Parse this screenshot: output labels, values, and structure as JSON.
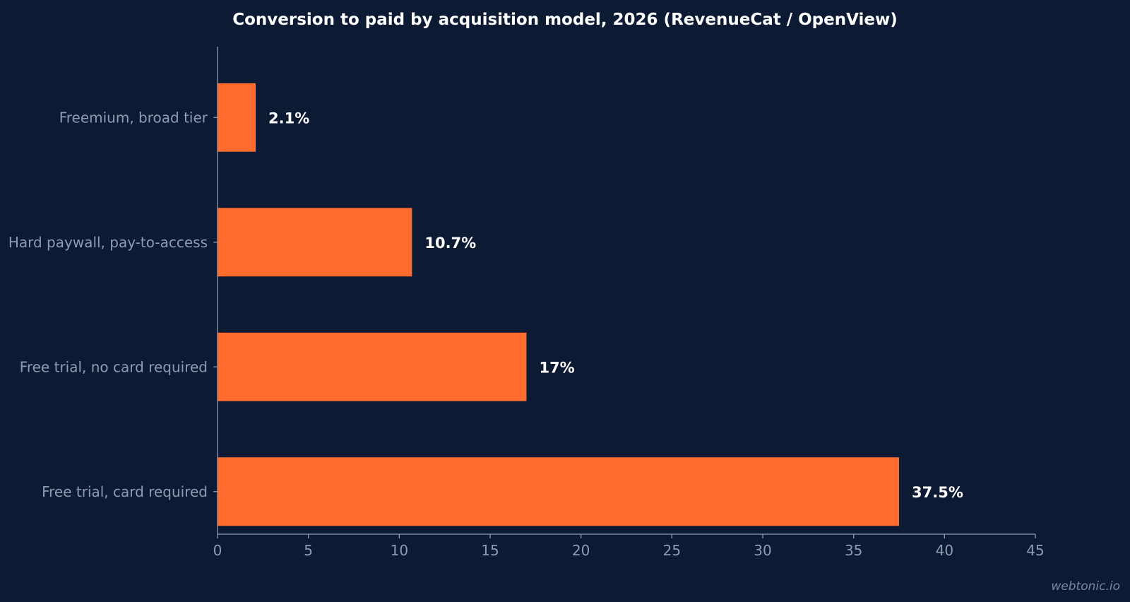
{
  "colors": {
    "background": "#0c1b33",
    "bar": "#ff6b2c",
    "axis": "#8e9bb3",
    "text_muted": "#8e9bb3",
    "text_strong": "#ffffff"
  },
  "watermark": "webtonic.io",
  "chart_data": {
    "type": "bar",
    "orientation": "horizontal",
    "title": "Conversion to paid by acquisition model, 2026 (RevenueCat / OpenView)",
    "xlabel": "",
    "ylabel": "",
    "categories": [
      "Freemium, broad tier",
      "Hard paywall, pay-to-access",
      "Free trial, no card required",
      "Free trial, card required"
    ],
    "values": [
      2.1,
      10.7,
      17,
      37.5
    ],
    "data_labels": [
      "2.1%",
      "10.7%",
      "17%",
      "37.5%"
    ],
    "xlim": [
      0,
      45
    ],
    "xticks": [
      0,
      5,
      10,
      15,
      20,
      25,
      30,
      35,
      40,
      45
    ],
    "grid": false,
    "legend": "none"
  }
}
